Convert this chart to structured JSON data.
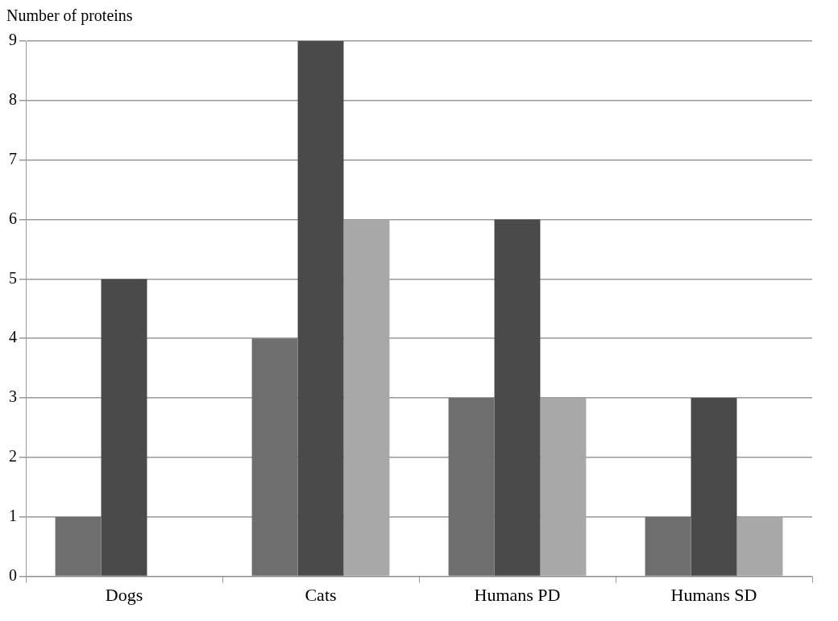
{
  "chart_data": {
    "type": "bar",
    "ylabel": "Number of proteins",
    "categories": [
      "Dogs",
      "Cats",
      "Humans PD",
      "Humans SD"
    ],
    "series": [
      {
        "color": "#6e6e6e",
        "values": [
          1,
          4,
          3,
          1
        ]
      },
      {
        "color": "#4a4a4a",
        "values": [
          5,
          9,
          6,
          3
        ]
      },
      {
        "color": "#a8a8a8",
        "values": [
          0,
          6,
          3,
          1
        ]
      }
    ],
    "ylim": [
      0,
      9
    ],
    "yticks": [
      0,
      1,
      2,
      3,
      4,
      5,
      6,
      7,
      8,
      9
    ],
    "grid": "y",
    "legend": false
  }
}
